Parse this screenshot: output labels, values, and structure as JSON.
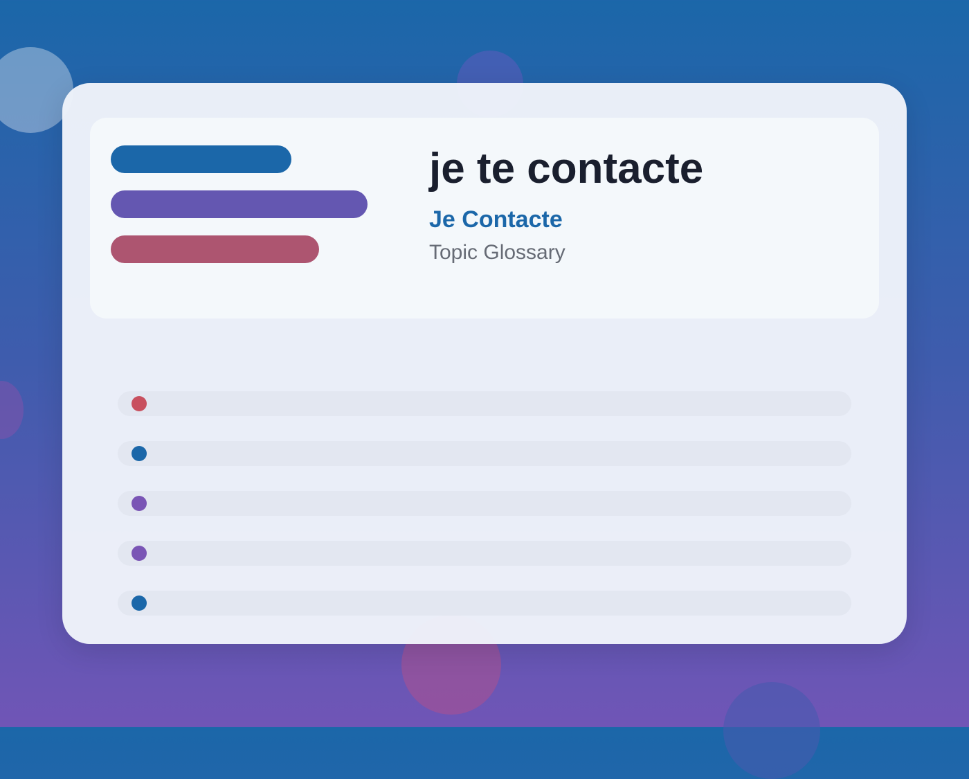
{
  "header": {
    "title": "je te contacte",
    "subtitle": "Je Contacte",
    "caption": "Topic Glossary"
  }
}
